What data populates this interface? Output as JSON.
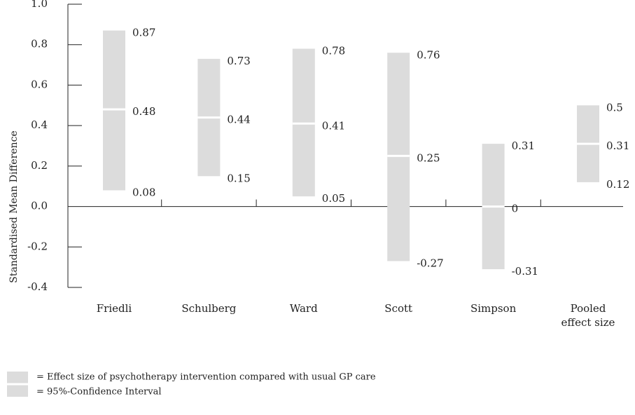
{
  "chart_data": {
    "type": "interval",
    "y_label": "Standardised Mean Difference",
    "categories": [
      "Friedli",
      "Schulberg",
      "Ward",
      "Scott",
      "Simpson",
      "Pooled effect size"
    ],
    "series": [
      {
        "name": "lower",
        "values": [
          0.08,
          0.15,
          0.05,
          -0.27,
          -0.31,
          0.12
        ]
      },
      {
        "name": "effect",
        "values": [
          0.48,
          0.44,
          0.41,
          0.25,
          0,
          0.31
        ]
      },
      {
        "name": "upper",
        "values": [
          0.87,
          0.73,
          0.78,
          0.76,
          0.31,
          0.5
        ]
      }
    ],
    "color": "#dcdcdc",
    "point_color": "#ffffff",
    "ylim": [
      -0.4,
      1
    ],
    "yticks": [
      {
        "value": -0.4,
        "label": "-0.4"
      },
      -0.2,
      {
        "value": 0,
        "label": "0.0"
      },
      0.2,
      0.4,
      0.6,
      0.8,
      {
        "value": 1,
        "label": "1.0"
      }
    ],
    "legend": [
      "= Effect size of psychotherapy intervention compared with usual GP care",
      "= 95%-Confidence Interval"
    ]
  }
}
